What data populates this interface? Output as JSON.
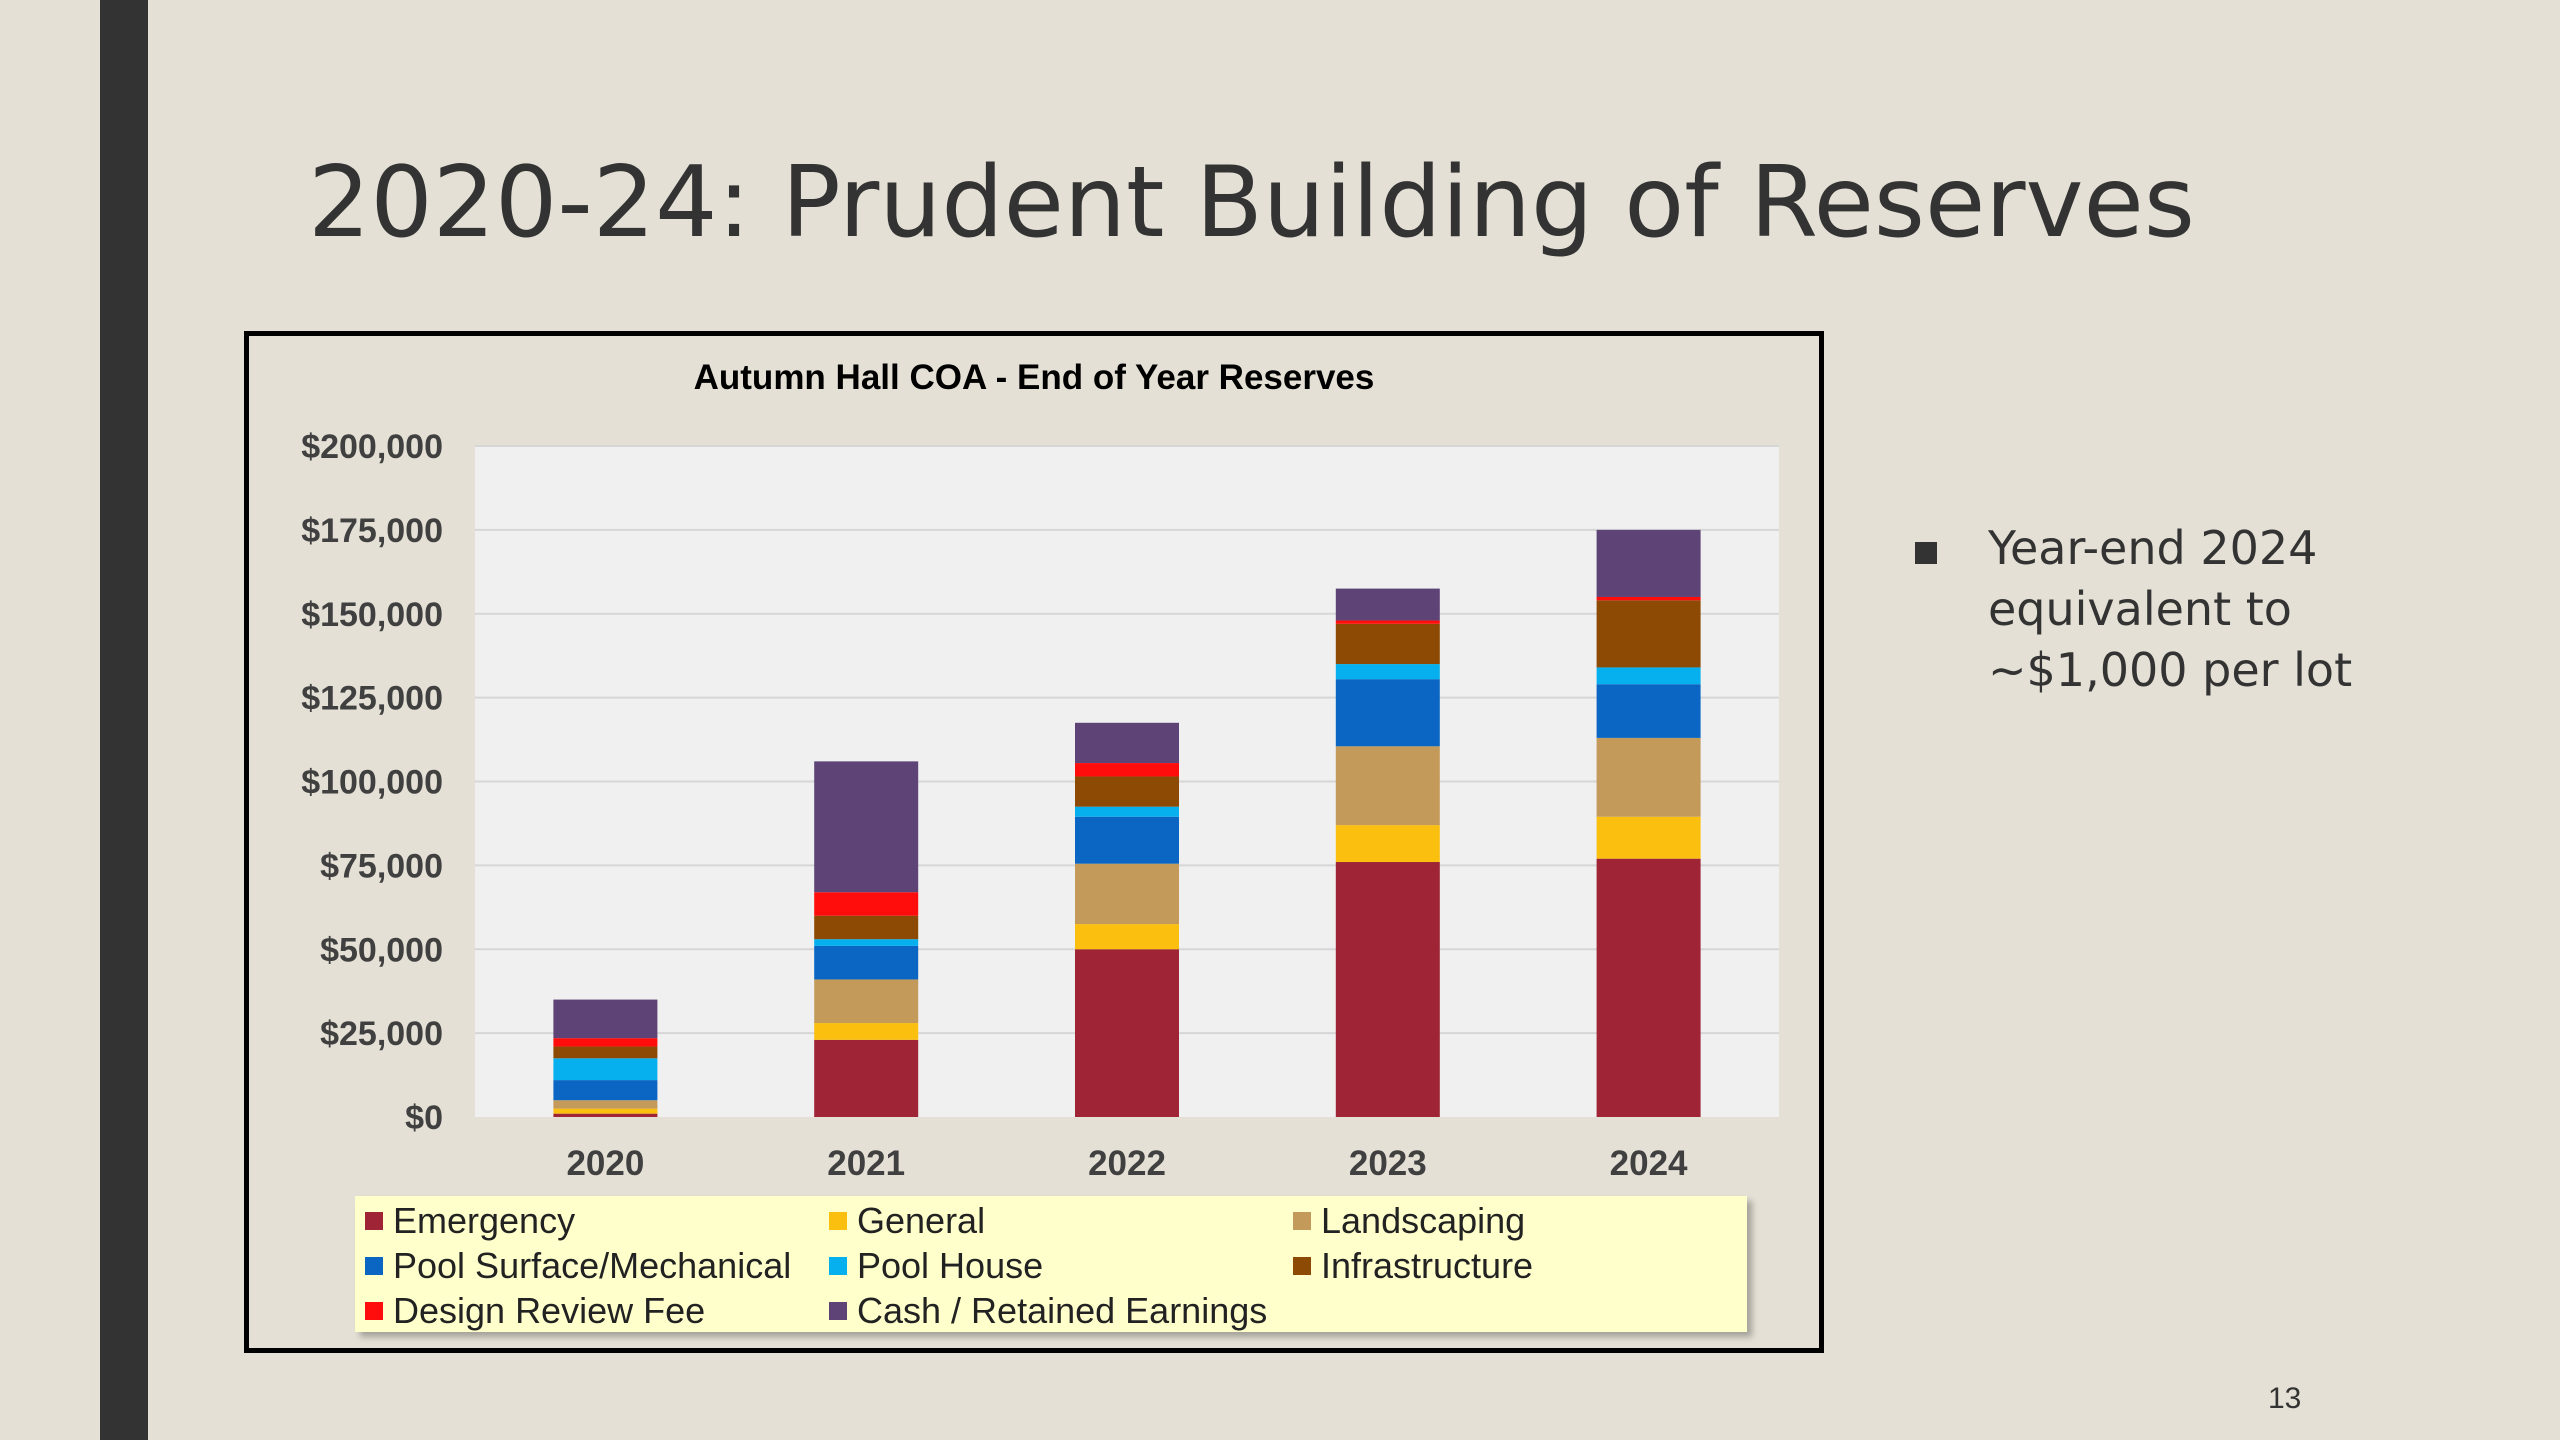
{
  "slide": {
    "title": "2020-24:  Prudent Building of Reserves",
    "bullets": [
      "Year-end 2024 equivalent to ~$1,000 per lot"
    ],
    "page_number": "13"
  },
  "chart_data": {
    "type": "bar",
    "stacked": true,
    "title": "Autumn Hall COA - End of Year Reserves",
    "xlabel": "",
    "ylabel": "",
    "categories": [
      "2020",
      "2021",
      "2022",
      "2023",
      "2024"
    ],
    "ylim": [
      0,
      200000
    ],
    "y_ticks": [
      0,
      25000,
      50000,
      75000,
      100000,
      125000,
      150000,
      175000,
      200000
    ],
    "y_tick_labels": [
      "$0",
      "$25,000",
      "$50,000",
      "$75,000",
      "$100,000",
      "$125,000",
      "$150,000",
      "$175,000",
      "$200,000"
    ],
    "grid": true,
    "legend_position": "bottom",
    "series": [
      {
        "name": "Emergency",
        "color": "#9e2436",
        "values": [
          1000,
          23000,
          50000,
          76000,
          77000
        ]
      },
      {
        "name": "General",
        "color": "#fbbf0f",
        "values": [
          1500,
          5000,
          7500,
          11000,
          12500
        ]
      },
      {
        "name": "Landscaping",
        "color": "#c49a5a",
        "values": [
          2500,
          13000,
          18000,
          23500,
          23500
        ]
      },
      {
        "name": "Pool Surface/Mechanical",
        "color": "#0a66c2",
        "values": [
          6000,
          10000,
          14000,
          20000,
          16000
        ]
      },
      {
        "name": "Pool House",
        "color": "#06b0ef",
        "values": [
          6500,
          2000,
          3000,
          4500,
          5000
        ]
      },
      {
        "name": "Infrastructure",
        "color": "#8c4a05",
        "values": [
          3500,
          7000,
          9000,
          12000,
          20000
        ]
      },
      {
        "name": "Design Review Fee",
        "color": "#ff0d0d",
        "values": [
          2500,
          7000,
          4000,
          1000,
          1000
        ]
      },
      {
        "name": "Cash / Retained Earnings",
        "color": "#5e4476",
        "values": [
          11500,
          39000,
          12000,
          9500,
          20000
        ]
      }
    ]
  }
}
